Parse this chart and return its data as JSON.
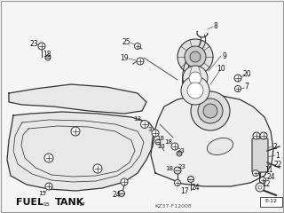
{
  "bg_color": "#f5f5f5",
  "line_color": "#333333",
  "text_color": "#111111",
  "fig_width": 3.2,
  "fig_height": 2.4,
  "dpi": 100,
  "title": "FUEL TANK",
  "title_sub": "17",
  "diagram_code": "KZ37-F12008",
  "page_code": "E-12",
  "border_color": "#999999"
}
